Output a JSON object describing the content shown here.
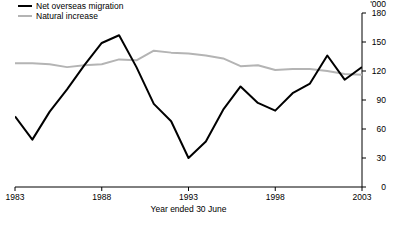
{
  "chart_data": {
    "type": "line",
    "x_label": "Year ended 30 June",
    "y_label": "'000",
    "x": [
      1983,
      1984,
      1985,
      1986,
      1987,
      1988,
      1989,
      1990,
      1991,
      1992,
      1993,
      1994,
      1995,
      1996,
      1997,
      1998,
      1999,
      2000,
      2001,
      2002,
      2003
    ],
    "series": [
      {
        "name": "Net overseas migration",
        "color": "#000000",
        "values": [
          73,
          49,
          78,
          101,
          126,
          149,
          157,
          124,
          86,
          68,
          30,
          47,
          80,
          104,
          87,
          79,
          97,
          107,
          136,
          111,
          124
        ]
      },
      {
        "name": "Natural increase",
        "color": "#b4b4b4",
        "values": [
          128,
          128,
          127,
          124,
          126,
          127,
          132,
          131,
          141,
          139,
          138,
          136,
          133,
          125,
          126,
          121,
          122,
          122,
          120,
          117,
          116
        ]
      }
    ],
    "xlim": [
      1983,
      2003
    ],
    "xticks": [
      1983,
      1988,
      1993,
      1998,
      2003
    ],
    "ylim": [
      0,
      180
    ],
    "yticks": [
      0,
      30,
      60,
      90,
      120,
      150,
      180
    ],
    "legend": "top-left",
    "grid": false
  }
}
